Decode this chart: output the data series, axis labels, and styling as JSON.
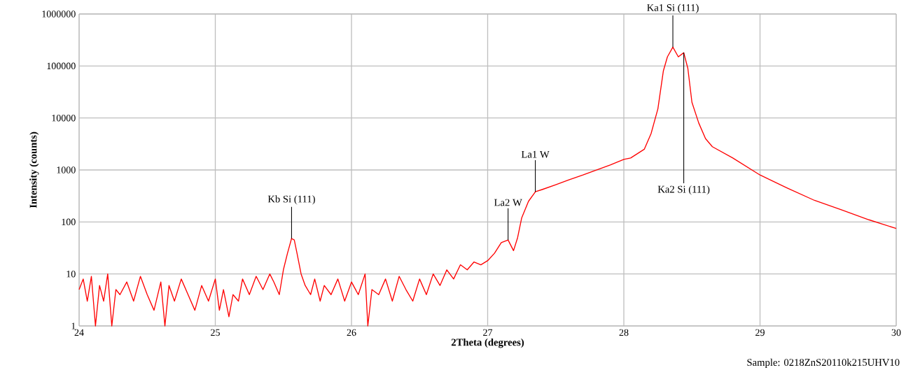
{
  "chart_data": {
    "type": "line",
    "xlabel": "2Theta (degrees)",
    "ylabel": "Intensity (counts)",
    "log": "y",
    "grid": true,
    "marker": "none",
    "line_style": "solid",
    "xlim": [
      24,
      30
    ],
    "xticks": [
      24,
      25,
      26,
      27,
      28,
      29,
      30
    ],
    "ylim": [
      1,
      1000000
    ],
    "yticks": [
      1,
      10,
      100,
      1000,
      10000,
      100000,
      1000000
    ],
    "x": [
      24.0,
      24.03,
      24.06,
      24.09,
      24.12,
      24.15,
      24.18,
      24.21,
      24.24,
      24.27,
      24.3,
      24.35,
      24.4,
      24.45,
      24.5,
      24.55,
      24.6,
      24.63,
      24.66,
      24.7,
      24.75,
      24.8,
      24.85,
      24.9,
      24.95,
      25.0,
      25.03,
      25.06,
      25.1,
      25.13,
      25.17,
      25.2,
      25.25,
      25.3,
      25.35,
      25.4,
      25.43,
      25.47,
      25.5,
      25.53,
      25.56,
      25.58,
      25.6,
      25.63,
      25.66,
      25.7,
      25.73,
      25.77,
      25.8,
      25.85,
      25.9,
      25.95,
      26.0,
      26.05,
      26.1,
      26.12,
      26.15,
      26.2,
      26.25,
      26.3,
      26.35,
      26.4,
      26.45,
      26.5,
      26.55,
      26.6,
      26.65,
      26.7,
      26.75,
      26.8,
      26.85,
      26.9,
      26.95,
      27.0,
      27.05,
      27.1,
      27.15,
      27.19,
      27.22,
      27.25,
      27.3,
      27.35,
      27.4,
      27.5,
      27.6,
      27.7,
      27.8,
      27.9,
      28.0,
      28.05,
      28.15,
      28.2,
      28.25,
      28.29,
      28.32,
      28.36,
      28.4,
      28.44,
      28.47,
      28.5,
      28.55,
      28.6,
      28.65,
      28.8,
      29.0,
      29.2,
      29.4,
      29.6,
      29.8,
      30.0
    ],
    "series": [
      {
        "color": "#ff0000",
        "values": [
          5,
          8,
          3,
          9,
          1,
          6,
          3,
          10,
          1,
          5,
          4,
          7,
          3,
          9,
          4,
          2,
          7,
          1,
          6,
          3,
          8,
          4,
          2,
          6,
          3,
          8,
          2,
          5,
          1.5,
          4,
          3,
          8,
          4,
          9,
          5,
          10,
          7,
          4,
          12,
          25,
          48,
          45,
          25,
          10,
          6,
          4,
          8,
          3,
          6,
          4,
          8,
          3,
          7,
          4,
          10,
          1,
          5,
          4,
          8,
          3,
          9,
          5,
          3,
          8,
          4,
          10,
          6,
          12,
          8,
          15,
          12,
          17,
          15,
          18,
          25,
          40,
          45,
          28,
          50,
          120,
          250,
          380,
          420,
          520,
          650,
          800,
          1000,
          1250,
          1600,
          1700,
          2500,
          5000,
          15000,
          80000,
          150000,
          230000,
          150000,
          180000,
          90000,
          20000,
          8000,
          4000,
          2800,
          1700,
          800,
          450,
          260,
          170,
          110,
          75
        ]
      }
    ],
    "annotations": [
      {
        "text": "Kb Si (111)",
        "x": 25.56,
        "y": 48
      },
      {
        "text": "La2 W",
        "x": 27.15,
        "y": 45
      },
      {
        "text": "La1 W",
        "x": 27.35,
        "y": 380
      },
      {
        "text": "Ka1 Si (111)",
        "x": 28.36,
        "y": 230000
      },
      {
        "text": "Ka2 Si (111)",
        "x": 28.44,
        "y": 180000
      },
      "Sample: 0218ZnS20110k215UHV10"
    ]
  }
}
